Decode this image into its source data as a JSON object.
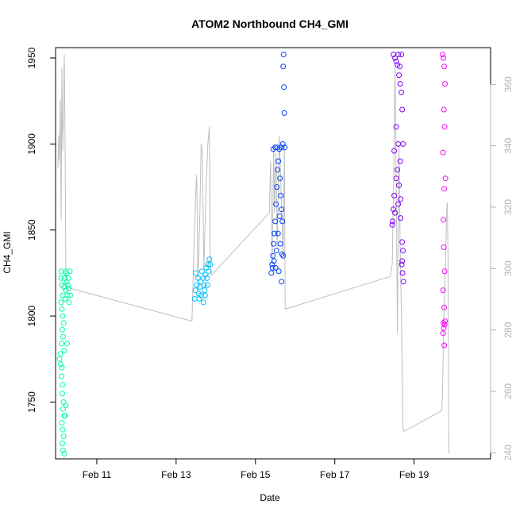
{
  "chart_data": {
    "type": "scatter",
    "title": "ATOM2 Northbound CH4_GMI",
    "xlabel": "Date",
    "ylabel": "CH4_GMI",
    "x_axis": {
      "unit": "days since Feb 10 00:00",
      "range": [
        -0.04,
        10.93
      ],
      "ticks": [
        {
          "value": 1,
          "label": "Feb 11"
        },
        {
          "value": 3,
          "label": "Feb 13"
        },
        {
          "value": 5,
          "label": "Feb 15"
        },
        {
          "value": 7,
          "label": "Feb 17"
        },
        {
          "value": 9,
          "label": "Feb 19"
        }
      ]
    },
    "y_axis": {
      "range": [
        1717,
        1956
      ],
      "ticks": [
        {
          "value": 1750,
          "label": "1750"
        },
        {
          "value": 1800,
          "label": "1800"
        },
        {
          "value": 1850,
          "label": "1850"
        },
        {
          "value": 1900,
          "label": "1900"
        },
        {
          "value": 1950,
          "label": "1950"
        }
      ]
    },
    "y2_axis": {
      "range": [
        238,
        372
      ],
      "color": "#b3b3b3",
      "ticks": [
        {
          "value": 240,
          "label": "240"
        },
        {
          "value": 260,
          "label": "260"
        },
        {
          "value": 280,
          "label": "280"
        },
        {
          "value": 300,
          "label": "300"
        },
        {
          "value": 320,
          "label": "320"
        },
        {
          "value": 340,
          "label": "340"
        },
        {
          "value": 360,
          "label": "360"
        }
      ]
    },
    "grid": false,
    "legend": "none",
    "line_color": "#bebebe",
    "series": [
      {
        "color": "#00ffaa",
        "points": [
          [
            0.1,
            1826
          ],
          [
            0.1,
            1822
          ],
          [
            0.12,
            1818
          ],
          [
            0.14,
            1812
          ],
          [
            0.1,
            1808
          ],
          [
            0.12,
            1804
          ],
          [
            0.14,
            1800
          ],
          [
            0.16,
            1796
          ],
          [
            0.13,
            1792
          ],
          [
            0.15,
            1788
          ],
          [
            0.11,
            1784
          ],
          [
            0.18,
            1780
          ],
          [
            0.08,
            1778
          ],
          [
            0.06,
            1775
          ],
          [
            0.09,
            1772
          ],
          [
            0.12,
            1770
          ],
          [
            0.11,
            1765
          ],
          [
            0.14,
            1760
          ],
          [
            0.13,
            1755
          ],
          [
            0.16,
            1750
          ],
          [
            0.15,
            1746
          ],
          [
            0.18,
            1742
          ],
          [
            0.12,
            1738
          ],
          [
            0.14,
            1734
          ],
          [
            0.16,
            1730
          ],
          [
            0.13,
            1726
          ],
          [
            0.15,
            1722
          ],
          [
            0.18,
            1720
          ],
          [
            0.2,
            1742
          ],
          [
            0.22,
            1748
          ],
          [
            0.2,
            1810
          ],
          [
            0.22,
            1815
          ],
          [
            0.24,
            1820
          ],
          [
            0.26,
            1812
          ],
          [
            0.25,
            1784
          ],
          [
            0.27,
            1818
          ],
          [
            0.28,
            1822
          ],
          [
            0.3,
            1808
          ],
          [
            0.32,
            1826
          ],
          [
            0.33,
            1812
          ],
          [
            0.21,
            1826
          ],
          [
            0.23,
            1825
          ],
          [
            0.19,
            1822
          ],
          [
            0.17,
            1817
          ],
          [
            0.29,
            1816
          ]
        ]
      },
      {
        "color": "#00c0ff",
        "points": [
          [
            3.47,
            1810
          ],
          [
            3.49,
            1815
          ],
          [
            3.52,
            1818
          ],
          [
            3.55,
            1822
          ],
          [
            3.5,
            1825
          ],
          [
            3.57,
            1813
          ],
          [
            3.6,
            1817
          ],
          [
            3.62,
            1820
          ],
          [
            3.65,
            1826
          ],
          [
            3.68,
            1822
          ],
          [
            3.7,
            1818
          ],
          [
            3.72,
            1815
          ],
          [
            3.74,
            1824
          ],
          [
            3.76,
            1828
          ],
          [
            3.78,
            1822
          ],
          [
            3.8,
            1830
          ],
          [
            3.82,
            1826
          ],
          [
            3.84,
            1833
          ],
          [
            3.86,
            1830
          ],
          [
            3.58,
            1810
          ],
          [
            3.63,
            1812
          ],
          [
            3.69,
            1808
          ],
          [
            3.73,
            1812
          ],
          [
            3.79,
            1818
          ]
        ]
      },
      {
        "color": "#0040ff",
        "points": [
          [
            5.4,
            1825
          ],
          [
            5.42,
            1830
          ],
          [
            5.44,
            1835
          ],
          [
            5.46,
            1842
          ],
          [
            5.48,
            1848
          ],
          [
            5.5,
            1855
          ],
          [
            5.52,
            1865
          ],
          [
            5.54,
            1875
          ],
          [
            5.56,
            1885
          ],
          [
            5.58,
            1890
          ],
          [
            5.45,
            1897
          ],
          [
            5.5,
            1898
          ],
          [
            5.55,
            1898
          ],
          [
            5.6,
            1897
          ],
          [
            5.62,
            1880
          ],
          [
            5.64,
            1870
          ],
          [
            5.66,
            1862
          ],
          [
            5.68,
            1855
          ],
          [
            5.7,
            1945
          ],
          [
            5.72,
            1933
          ],
          [
            5.73,
            1918
          ],
          [
            5.71,
            1952
          ],
          [
            5.65,
            1898
          ],
          [
            5.69,
            1900
          ],
          [
            5.74,
            1898
          ],
          [
            5.43,
            1828
          ],
          [
            5.47,
            1832
          ],
          [
            5.51,
            1828
          ],
          [
            5.53,
            1838
          ],
          [
            5.57,
            1848
          ],
          [
            5.61,
            1858
          ],
          [
            5.63,
            1842
          ],
          [
            5.67,
            1836
          ],
          [
            5.59,
            1826
          ],
          [
            5.66,
            1820
          ],
          [
            5.7,
            1835
          ]
        ]
      },
      {
        "color": "#8000ff",
        "points": [
          [
            8.48,
            1952
          ],
          [
            8.52,
            1950
          ],
          [
            8.55,
            1948
          ],
          [
            8.58,
            1946
          ],
          [
            8.62,
            1940
          ],
          [
            8.65,
            1935
          ],
          [
            8.68,
            1930
          ],
          [
            8.7,
            1920
          ],
          [
            8.72,
            1900
          ],
          [
            8.55,
            1910
          ],
          [
            8.6,
            1900
          ],
          [
            8.65,
            1890
          ],
          [
            8.55,
            1880
          ],
          [
            8.5,
            1870
          ],
          [
            8.48,
            1862
          ],
          [
            8.46,
            1855
          ],
          [
            8.45,
            1853
          ],
          [
            8.52,
            1860
          ],
          [
            8.6,
            1865
          ],
          [
            8.66,
            1868
          ],
          [
            8.7,
            1843
          ],
          [
            8.72,
            1838
          ],
          [
            8.69,
            1830
          ],
          [
            8.71,
            1825
          ],
          [
            8.73,
            1820
          ],
          [
            8.6,
            1952
          ],
          [
            8.64,
            1945
          ],
          [
            8.68,
            1952
          ],
          [
            8.5,
            1896
          ],
          [
            8.58,
            1885
          ],
          [
            8.62,
            1876
          ],
          [
            8.66,
            1857
          ],
          [
            8.7,
            1832
          ]
        ]
      },
      {
        "color": "#ff00ff",
        "points": [
          [
            9.72,
            1952
          ],
          [
            9.74,
            1950
          ],
          [
            9.76,
            1945
          ],
          [
            9.78,
            1935
          ],
          [
            9.75,
            1920
          ],
          [
            9.77,
            1910
          ],
          [
            9.73,
            1895
          ],
          [
            9.79,
            1880
          ],
          [
            9.76,
            1874
          ],
          [
            9.74,
            1856
          ],
          [
            9.75,
            1840
          ],
          [
            9.77,
            1826
          ],
          [
            9.73,
            1815
          ],
          [
            9.76,
            1805
          ],
          [
            9.74,
            1796
          ],
          [
            9.75,
            1793
          ],
          [
            9.77,
            1795
          ],
          [
            9.73,
            1790
          ],
          [
            9.78,
            1797
          ],
          [
            9.76,
            1783
          ]
        ]
      }
    ],
    "line_points": [
      [
        0.02,
        1886
      ],
      [
        0.04,
        1905
      ],
      [
        0.05,
        1890
      ],
      [
        0.07,
        1910
      ],
      [
        0.08,
        1926
      ],
      [
        0.09,
        1890
      ],
      [
        0.1,
        1856
      ],
      [
        0.12,
        1944
      ],
      [
        0.14,
        1896
      ],
      [
        0.16,
        1920
      ],
      [
        0.18,
        1952
      ],
      [
        0.2,
        1900
      ],
      [
        0.22,
        1820
      ],
      [
        0.25,
        1817
      ],
      [
        0.35,
        1816
      ],
      [
        3.4,
        1797
      ],
      [
        3.45,
        1840
      ],
      [
        3.5,
        1875
      ],
      [
        3.52,
        1882
      ],
      [
        3.55,
        1820
      ],
      [
        3.6,
        1860
      ],
      [
        3.63,
        1900
      ],
      [
        3.66,
        1895
      ],
      [
        3.7,
        1828
      ],
      [
        3.75,
        1870
      ],
      [
        3.8,
        1900
      ],
      [
        3.84,
        1910
      ],
      [
        3.86,
        1830
      ],
      [
        3.9,
        1824
      ],
      [
        5.35,
        1860
      ],
      [
        5.38,
        1890
      ],
      [
        5.42,
        1830
      ],
      [
        5.46,
        1900
      ],
      [
        5.48,
        1860
      ],
      [
        5.52,
        1895
      ],
      [
        5.55,
        1840
      ],
      [
        5.6,
        1905
      ],
      [
        5.65,
        1870
      ],
      [
        5.7,
        1835
      ],
      [
        5.73,
        1900
      ],
      [
        5.75,
        1804
      ],
      [
        8.4,
        1823
      ],
      [
        8.45,
        1830
      ],
      [
        8.48,
        1870
      ],
      [
        8.52,
        1945
      ],
      [
        8.55,
        1880
      ],
      [
        8.58,
        1790
      ],
      [
        8.62,
        1900
      ],
      [
        8.65,
        1840
      ],
      [
        8.68,
        1803
      ],
      [
        8.72,
        1735
      ],
      [
        8.75,
        1733
      ],
      [
        9.7,
        1745
      ],
      [
        9.72,
        1760
      ],
      [
        9.75,
        1800
      ],
      [
        9.78,
        1820
      ],
      [
        9.8,
        1840
      ],
      [
        9.82,
        1860
      ],
      [
        9.84,
        1866
      ],
      [
        9.86,
        1830
      ],
      [
        9.87,
        1750
      ],
      [
        9.88,
        1720
      ]
    ]
  }
}
